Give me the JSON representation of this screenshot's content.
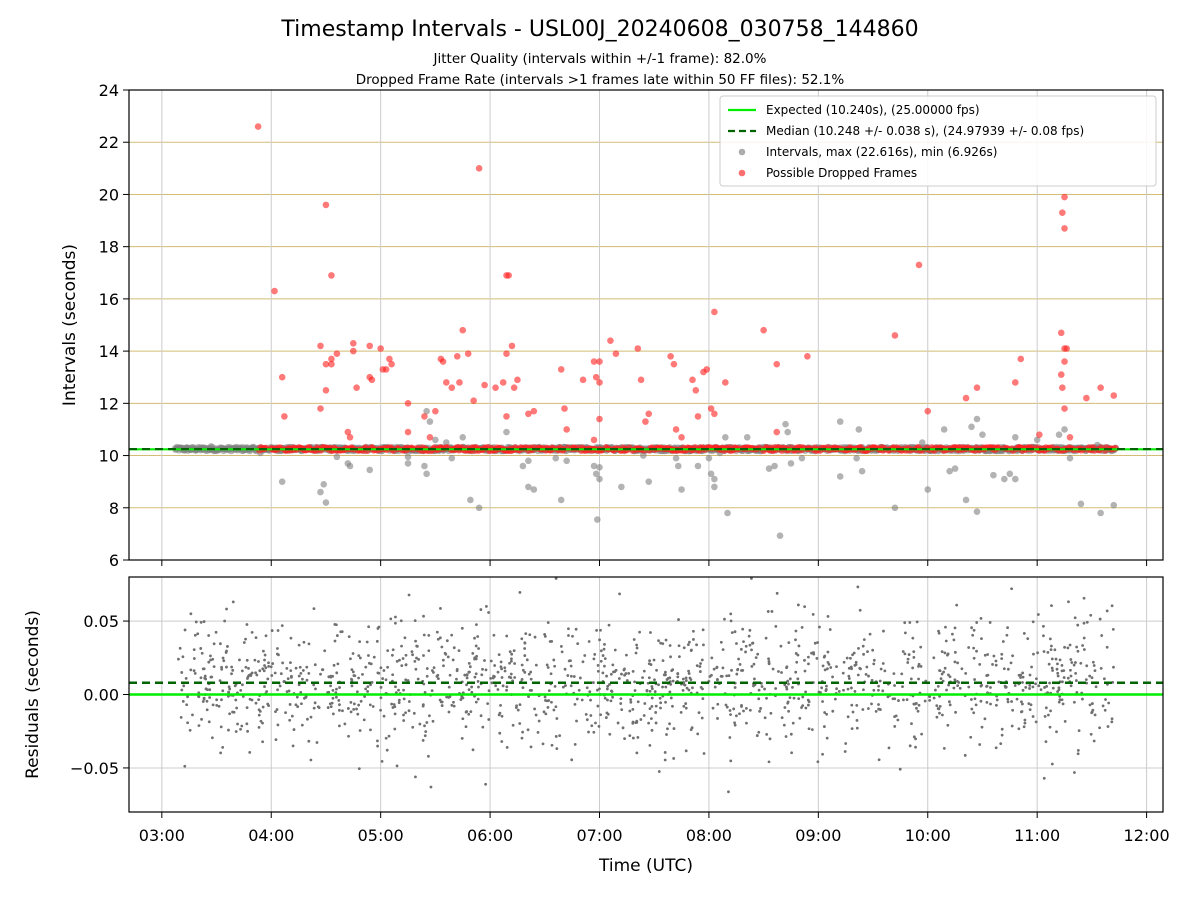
{
  "figure": {
    "title": "Timestamp Intervals - USL00J_20240608_030758_144860",
    "subtitle_line1": "Jitter Quality (intervals within +/-1 frame): 82.0%",
    "subtitle_line2": "Dropped Frame Rate (intervals >1 frames late within 50 FF files): 52.1%"
  },
  "chart_data": [
    {
      "type": "scatter",
      "panel": "top",
      "title": "",
      "xlabel": "",
      "ylabel": "Intervals (seconds)",
      "xlim_hours": [
        2.7,
        12.15
      ],
      "ylim": [
        6,
        24
      ],
      "yticks": [
        6,
        8,
        10,
        12,
        14,
        16,
        18,
        20,
        22,
        24
      ],
      "ytick_labels": [
        "6",
        "8",
        "10",
        "12",
        "14",
        "16",
        "18",
        "20",
        "22",
        "24"
      ],
      "xticks_hours": [
        3,
        4,
        5,
        6,
        7,
        8,
        9,
        10,
        11,
        12
      ],
      "grid": true,
      "legend_position": "upper right",
      "lines": [
        {
          "name": "Expected (10.240s), (25.00000 fps)",
          "y": 10.24,
          "color": "#00ee00",
          "style": "solid"
        },
        {
          "name": "Median (10.248 +/- 0.038 s), (24.97939 +/- 0.08 fps)",
          "y": 10.248,
          "color": "#006400",
          "style": "dashed"
        }
      ],
      "series": [
        {
          "name": "Intervals, max (22.616s), min (6.926s)",
          "color": "#808080",
          "baseline_band": [
            3.12,
            11.72,
            10.25
          ],
          "points": [
            [
              3.45,
              10.35
            ],
            [
              3.9,
              10.1
            ],
            [
              4.1,
              9.0
            ],
            [
              4.45,
              8.6
            ],
            [
              4.48,
              8.9
            ],
            [
              4.5,
              8.2
            ],
            [
              4.6,
              9.95
            ],
            [
              4.7,
              9.7
            ],
            [
              4.72,
              9.6
            ],
            [
              4.9,
              9.45
            ],
            [
              5.25,
              9.7
            ],
            [
              5.25,
              9.95
            ],
            [
              5.4,
              9.6
            ],
            [
              5.42,
              9.3
            ],
            [
              5.42,
              11.7
            ],
            [
              5.45,
              11.3
            ],
            [
              5.5,
              10.6
            ],
            [
              5.6,
              10.5
            ],
            [
              5.65,
              9.9
            ],
            [
              5.75,
              10.7
            ],
            [
              5.82,
              8.3
            ],
            [
              5.9,
              8.0
            ],
            [
              6.15,
              10.9
            ],
            [
              6.3,
              9.6
            ],
            [
              6.35,
              9.8
            ],
            [
              6.35,
              8.8
            ],
            [
              6.4,
              8.7
            ],
            [
              6.6,
              9.9
            ],
            [
              6.65,
              8.3
            ],
            [
              6.7,
              9.8
            ],
            [
              6.95,
              9.6
            ],
            [
              6.97,
              9.3
            ],
            [
              6.98,
              7.55
            ],
            [
              7.0,
              9.1
            ],
            [
              7.0,
              9.55
            ],
            [
              7.2,
              8.8
            ],
            [
              7.4,
              10.0
            ],
            [
              7.45,
              9.0
            ],
            [
              7.5,
              10.3
            ],
            [
              7.7,
              9.9
            ],
            [
              7.72,
              9.6
            ],
            [
              7.75,
              8.7
            ],
            [
              7.85,
              10.2
            ],
            [
              7.9,
              9.6
            ],
            [
              8.0,
              9.9
            ],
            [
              8.02,
              9.3
            ],
            [
              8.05,
              8.8
            ],
            [
              8.05,
              9.1
            ],
            [
              8.1,
              10.1
            ],
            [
              8.15,
              10.7
            ],
            [
              8.17,
              7.8
            ],
            [
              8.35,
              10.7
            ],
            [
              8.55,
              9.5
            ],
            [
              8.6,
              9.6
            ],
            [
              8.65,
              6.93
            ],
            [
              8.7,
              11.2
            ],
            [
              8.72,
              10.9
            ],
            [
              8.75,
              9.7
            ],
            [
              8.85,
              9.9
            ],
            [
              9.2,
              11.3
            ],
            [
              9.2,
              9.2
            ],
            [
              9.35,
              9.9
            ],
            [
              9.37,
              11.0
            ],
            [
              9.4,
              9.4
            ],
            [
              9.7,
              8.0
            ],
            [
              9.95,
              10.5
            ],
            [
              10.0,
              8.7
            ],
            [
              10.15,
              11.0
            ],
            [
              10.2,
              9.4
            ],
            [
              10.25,
              9.5
            ],
            [
              10.35,
              8.3
            ],
            [
              10.4,
              11.1
            ],
            [
              10.45,
              11.4
            ],
            [
              10.45,
              7.85
            ],
            [
              10.5,
              10.8
            ],
            [
              10.6,
              9.25
            ],
            [
              10.7,
              9.1
            ],
            [
              10.75,
              9.3
            ],
            [
              10.8,
              9.1
            ],
            [
              10.8,
              10.7
            ],
            [
              11.0,
              10.6
            ],
            [
              11.2,
              10.8
            ],
            [
              11.25,
              11.0
            ],
            [
              11.3,
              9.9
            ],
            [
              11.4,
              8.15
            ],
            [
              11.5,
              10.2
            ],
            [
              11.55,
              10.4
            ],
            [
              11.58,
              7.8
            ],
            [
              11.7,
              8.1
            ]
          ]
        },
        {
          "name": "Possible Dropped Frames",
          "color": "#ff2020",
          "baseline_band": [
            3.88,
            11.72,
            10.25
          ],
          "points": [
            [
              3.88,
              22.6
            ],
            [
              4.03,
              16.3
            ],
            [
              4.1,
              13.0
            ],
            [
              4.12,
              11.5
            ],
            [
              4.45,
              14.2
            ],
            [
              4.5,
              19.6
            ],
            [
              4.55,
              16.9
            ],
            [
              4.45,
              11.8
            ],
            [
              4.5,
              13.5
            ],
            [
              4.5,
              12.5
            ],
            [
              4.55,
              13.5
            ],
            [
              4.6,
              13.9
            ],
            [
              4.55,
              13.7
            ],
            [
              4.7,
              10.9
            ],
            [
              4.75,
              14.3
            ],
            [
              4.75,
              14.0
            ],
            [
              4.78,
              12.6
            ],
            [
              4.72,
              10.7
            ],
            [
              4.9,
              13.0
            ],
            [
              4.92,
              12.9
            ],
            [
              4.9,
              14.2
            ],
            [
              5.0,
              14.1
            ],
            [
              5.02,
              13.3
            ],
            [
              5.05,
              13.3
            ],
            [
              5.08,
              13.7
            ],
            [
              5.1,
              13.5
            ],
            [
              5.25,
              12.0
            ],
            [
              5.25,
              10.9
            ],
            [
              5.4,
              11.5
            ],
            [
              5.45,
              10.7
            ],
            [
              5.5,
              11.7
            ],
            [
              5.55,
              13.7
            ],
            [
              5.57,
              13.6
            ],
            [
              5.6,
              12.8
            ],
            [
              5.65,
              12.6
            ],
            [
              5.7,
              13.8
            ],
            [
              5.72,
              12.8
            ],
            [
              5.75,
              14.8
            ],
            [
              5.8,
              13.9
            ],
            [
              5.85,
              12.1
            ],
            [
              5.9,
              21.0
            ],
            [
              5.95,
              12.7
            ],
            [
              6.05,
              12.6
            ],
            [
              6.15,
              16.9
            ],
            [
              6.17,
              16.9
            ],
            [
              6.12,
              12.8
            ],
            [
              6.15,
              13.9
            ],
            [
              6.2,
              14.2
            ],
            [
              6.25,
              12.9
            ],
            [
              6.15,
              11.5
            ],
            [
              6.22,
              12.6
            ],
            [
              6.4,
              11.7
            ],
            [
              6.35,
              11.6
            ],
            [
              6.65,
              13.3
            ],
            [
              6.68,
              11.8
            ],
            [
              6.7,
              11.0
            ],
            [
              6.85,
              12.9
            ],
            [
              6.95,
              13.6
            ],
            [
              6.97,
              13.0
            ],
            [
              7.0,
              13.6
            ],
            [
              7.0,
              12.8
            ],
            [
              7.0,
              11.4
            ],
            [
              6.95,
              10.6
            ],
            [
              7.1,
              14.4
            ],
            [
              7.15,
              13.9
            ],
            [
              7.35,
              14.1
            ],
            [
              7.38,
              12.9
            ],
            [
              7.42,
              11.3
            ],
            [
              7.45,
              11.6
            ],
            [
              7.65,
              13.8
            ],
            [
              7.68,
              13.5
            ],
            [
              7.7,
              11.0
            ],
            [
              7.75,
              10.7
            ],
            [
              7.85,
              12.9
            ],
            [
              7.88,
              12.5
            ],
            [
              7.9,
              11.5
            ],
            [
              7.95,
              13.2
            ],
            [
              7.98,
              13.3
            ],
            [
              8.05,
              15.5
            ],
            [
              8.02,
              11.8
            ],
            [
              8.05,
              11.6
            ],
            [
              8.15,
              12.8
            ],
            [
              8.5,
              14.8
            ],
            [
              8.62,
              13.5
            ],
            [
              8.62,
              10.9
            ],
            [
              8.9,
              13.8
            ],
            [
              9.7,
              14.6
            ],
            [
              9.92,
              17.3
            ],
            [
              10.0,
              11.7
            ],
            [
              10.35,
              12.2
            ],
            [
              10.45,
              12.6
            ],
            [
              10.8,
              12.8
            ],
            [
              10.85,
              13.7
            ],
            [
              11.02,
              10.8
            ],
            [
              11.25,
              19.9
            ],
            [
              11.23,
              19.3
            ],
            [
              11.25,
              18.7
            ],
            [
              11.22,
              14.7
            ],
            [
              11.25,
              14.1
            ],
            [
              11.27,
              14.1
            ],
            [
              11.25,
              13.6
            ],
            [
              11.22,
              13.1
            ],
            [
              11.23,
              12.6
            ],
            [
              11.25,
              11.8
            ],
            [
              11.3,
              10.7
            ],
            [
              11.45,
              12.2
            ],
            [
              11.58,
              12.6
            ],
            [
              11.7,
              12.3
            ]
          ]
        }
      ]
    },
    {
      "type": "scatter",
      "panel": "bottom",
      "title": "",
      "xlabel": "Time (UTC)",
      "ylabel": "Residuals (seconds)",
      "xlim_hours": [
        2.7,
        12.15
      ],
      "ylim": [
        -0.08,
        0.08
      ],
      "yticks": [
        -0.05,
        0.0,
        0.05
      ],
      "ytick_labels": [
        "−0.05",
        "0.00",
        "0.05"
      ],
      "xticks_hours": [
        3,
        4,
        5,
        6,
        7,
        8,
        9,
        10,
        11,
        12
      ],
      "xtick_labels": [
        "03:00",
        "04:00",
        "05:00",
        "06:00",
        "07:00",
        "08:00",
        "09:00",
        "10:00",
        "11:00",
        "12:00"
      ],
      "grid": true,
      "lines": [
        {
          "y": 0.0,
          "color": "#00ee00",
          "style": "solid"
        },
        {
          "y": 0.008,
          "color": "#006400",
          "style": "dashed"
        }
      ],
      "residual_cloud": {
        "x_range": [
          3.15,
          11.72
        ],
        "mean": 0.008,
        "std": 0.022,
        "count": 1500,
        "color": "#707070"
      }
    }
  ],
  "legend": {
    "items": [
      {
        "label": "Expected (10.240s), (25.00000 fps)",
        "kind": "line",
        "color": "#00ee00"
      },
      {
        "label": "Median (10.248 +/- 0.038 s), (24.97939 +/- 0.08 fps)",
        "kind": "dashed",
        "color": "#006400"
      },
      {
        "label": "Intervals, max (22.616s), min (6.926s)",
        "kind": "dot",
        "color": "#808080"
      },
      {
        "label": "Possible Dropped Frames",
        "kind": "dot",
        "color": "#ff2020"
      }
    ]
  }
}
